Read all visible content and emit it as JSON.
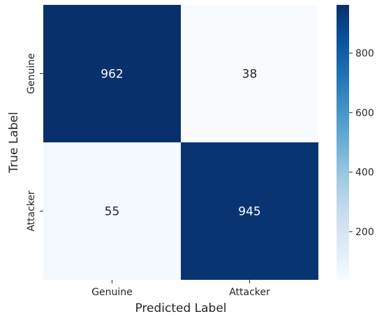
{
  "chart_data": {
    "type": "heatmap",
    "xlabel": "Predicted Label",
    "ylabel": "True Label",
    "x_categories": [
      "Genuine",
      "Attacker"
    ],
    "y_categories": [
      "Genuine",
      "Attacker"
    ],
    "values": [
      [
        962,
        38
      ],
      [
        55,
        945
      ]
    ],
    "colormap": "Blues",
    "colorbar": {
      "range": [
        38,
        962
      ],
      "ticks": [
        200,
        400,
        600,
        800
      ],
      "tick_labels": [
        "200",
        "400",
        "600",
        "800"
      ]
    },
    "colors": {
      "low": "#f7fbff",
      "high": "#08306b",
      "annotation_dark_bg": "#ffffff",
      "annotation_light_bg": "#262626"
    }
  }
}
